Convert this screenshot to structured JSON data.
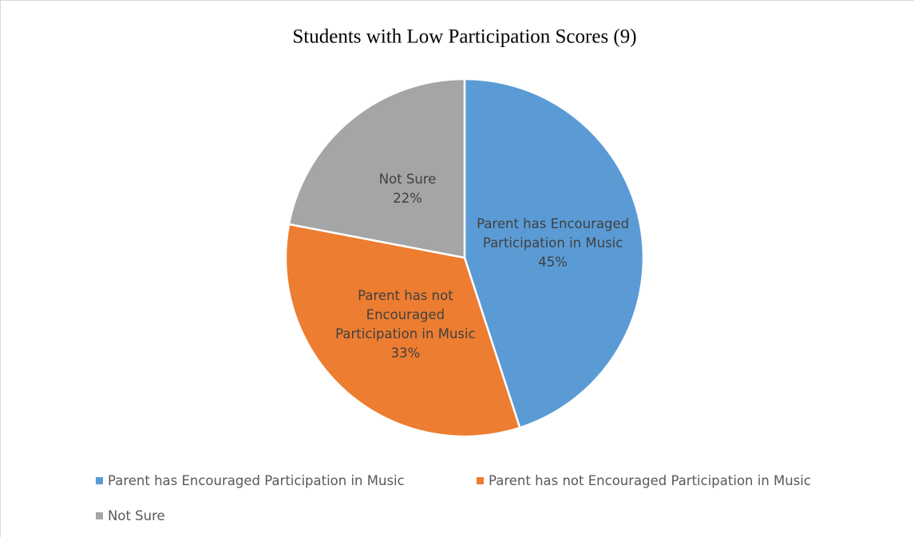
{
  "chart_data": {
    "type": "pie",
    "title": "Students with Low Participation Scores (9)",
    "categories": [
      "Parent has Encouraged Participation in Music",
      "Parent has not Encouraged Participation in Music",
      "Not Sure"
    ],
    "values": [
      45,
      33,
      22
    ],
    "value_labels": [
      "45%",
      "33%",
      "22%"
    ],
    "colors": [
      "#5b9bd5",
      "#ed7d31",
      "#a5a5a5"
    ],
    "legend": "bottom"
  }
}
